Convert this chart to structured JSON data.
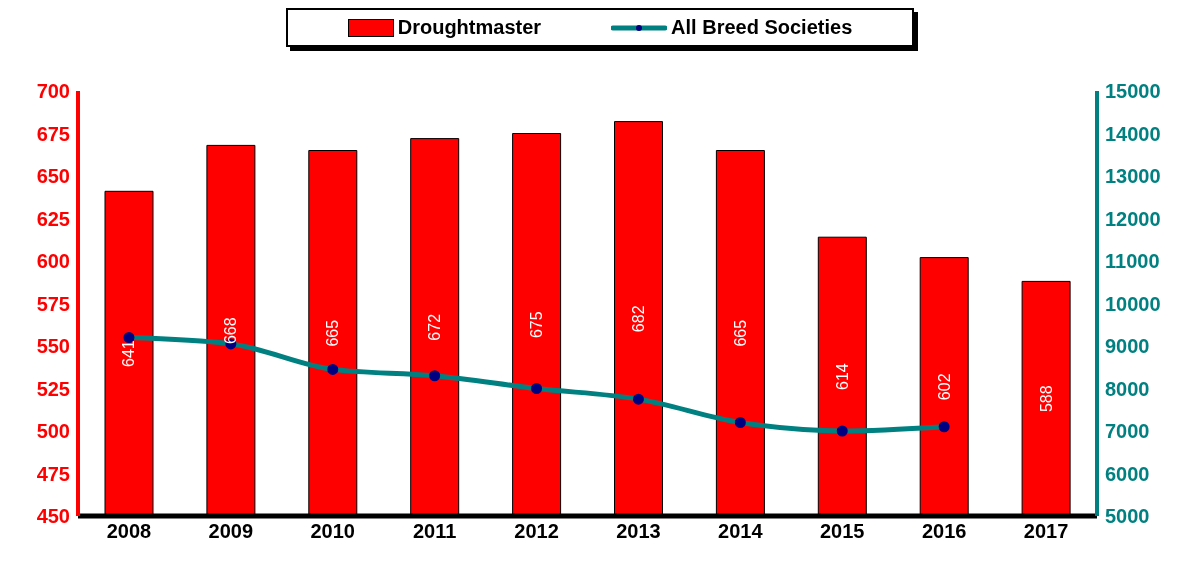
{
  "chart_data": {
    "type": "bar",
    "categories": [
      "2008",
      "2009",
      "2010",
      "2011",
      "2012",
      "2013",
      "2014",
      "2015",
      "2016",
      "2017"
    ],
    "series": [
      {
        "name": "Droughtmaster",
        "color": "#ff0000",
        "values": [
          641,
          668,
          665,
          672,
          675,
          682,
          665,
          614,
          602,
          588
        ],
        "value_labels": [
          "641",
          "668",
          "665",
          "672",
          "675",
          "682",
          "665",
          "614",
          "602",
          "588"
        ]
      },
      {
        "name": "All Breed Societies",
        "type": "line",
        "axis": "y2",
        "color": "#008080",
        "marker": "circle",
        "values": [
          9200,
          9050,
          8450,
          8300,
          8000,
          7750,
          7200,
          7000,
          7100,
          null
        ]
      }
    ],
    "ylim": [
      450,
      700
    ],
    "yticks": [
      450,
      475,
      500,
      525,
      550,
      575,
      600,
      625,
      650,
      675,
      700
    ],
    "y2lim": [
      5000,
      15000
    ],
    "y2ticks": [
      5000,
      6000,
      7000,
      8000,
      9000,
      10000,
      11000,
      12000,
      13000,
      14000,
      15000
    ],
    "legend": "top"
  }
}
